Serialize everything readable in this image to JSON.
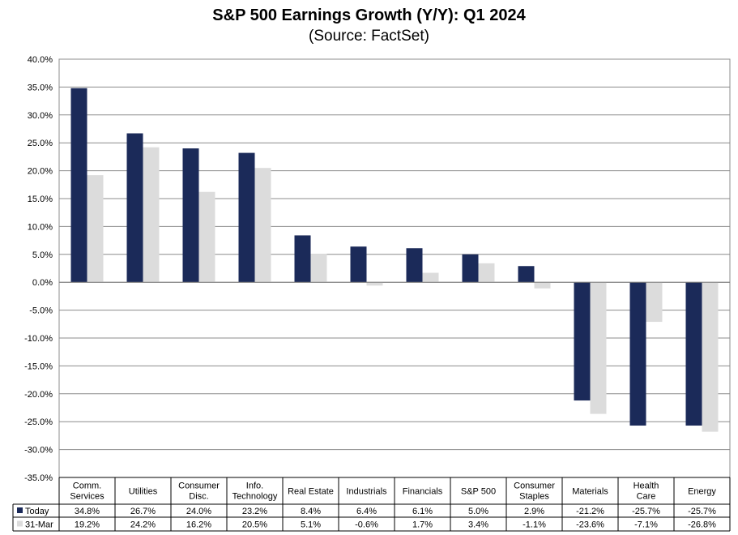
{
  "chart_data": {
    "type": "bar",
    "title": "S&P 500 Earnings Growth (Y/Y): Q1 2024",
    "subtitle": "(Source: FactSet)",
    "categories": [
      [
        "Comm.",
        "Services"
      ],
      [
        "Utilities"
      ],
      [
        "Consumer",
        "Disc."
      ],
      [
        "Info.",
        "Technology"
      ],
      [
        "Real Estate"
      ],
      [
        "Industrials"
      ],
      [
        "Financials"
      ],
      [
        "S&P 500"
      ],
      [
        "Consumer",
        "Staples"
      ],
      [
        "Materials"
      ],
      [
        "Health",
        "Care"
      ],
      [
        "Energy"
      ]
    ],
    "series": [
      {
        "name": "Today",
        "color": "#1b2a59",
        "values": [
          34.8,
          26.7,
          24.0,
          23.2,
          8.4,
          6.4,
          6.1,
          5.0,
          2.9,
          -21.2,
          -25.7,
          -25.7
        ],
        "labels": [
          "34.8%",
          "26.7%",
          "24.0%",
          "23.2%",
          "8.4%",
          "6.4%",
          "6.1%",
          "5.0%",
          "2.9%",
          "-21.2%",
          "-25.7%",
          "-25.7%"
        ]
      },
      {
        "name": "31-Mar",
        "color": "#dcdcdc",
        "values": [
          19.2,
          24.2,
          16.2,
          20.5,
          5.1,
          -0.6,
          1.7,
          3.4,
          -1.1,
          -23.6,
          -7.1,
          -26.8
        ],
        "labels": [
          "19.2%",
          "24.2%",
          "16.2%",
          "20.5%",
          "5.1%",
          "-0.6%",
          "1.7%",
          "3.4%",
          "-1.1%",
          "-23.6%",
          "-7.1%",
          "-26.8%"
        ]
      }
    ],
    "ylim": [
      -35,
      40
    ],
    "ytick_labels": [
      "40.0%",
      "35.0%",
      "30.0%",
      "25.0%",
      "20.0%",
      "15.0%",
      "10.0%",
      "5.0%",
      "0.0%",
      "-5.0%",
      "-10.0%",
      "-15.0%",
      "-20.0%",
      "-25.0%",
      "-30.0%",
      "-35.0%"
    ],
    "grid": true,
    "legend": "data-table"
  }
}
